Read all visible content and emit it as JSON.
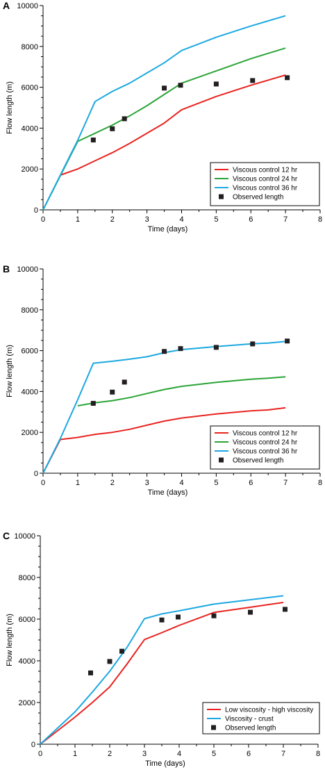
{
  "chart_data": [
    {
      "panel": "A",
      "type": "line",
      "xlabel": "Time (days)",
      "ylabel": "Flow length (m)",
      "xlim": [
        0,
        8
      ],
      "ylim": [
        0,
        10000
      ],
      "x_ticks": [
        "0",
        "1",
        "2",
        "3",
        "4",
        "5",
        "6",
        "7",
        "8"
      ],
      "y_ticks": [
        "0",
        "2000",
        "4000",
        "6000",
        "8000",
        "10000"
      ],
      "legend_position": "bottom-right",
      "series": [
        {
          "name": "Viscous control 12 hr",
          "type": "line",
          "color": "#e8231f",
          "x": [
            0.5,
            1.0,
            1.5,
            2.0,
            2.5,
            3.0,
            3.5,
            4.0,
            5.0,
            6.0,
            7.0
          ],
          "y": [
            1700,
            2000,
            2400,
            2800,
            3250,
            3750,
            4250,
            4900,
            5550,
            6100,
            6600
          ]
        },
        {
          "name": "Viscous control 24 hr",
          "type": "line",
          "color": "#2aa436",
          "x": [
            0,
            1.0,
            1.5,
            2.0,
            2.5,
            3.0,
            3.5,
            4.0,
            5.0,
            6.0,
            7.0
          ],
          "y": [
            0,
            3350,
            3750,
            4150,
            4600,
            5100,
            5650,
            6200,
            6800,
            7400,
            7920
          ]
        },
        {
          "name": "Viscous control 36 hr",
          "type": "line",
          "color": "#1ba8e0",
          "x": [
            0,
            0.5,
            1.0,
            1.5,
            2.0,
            2.5,
            3.0,
            3.5,
            4.0,
            5.0,
            6.0,
            7.0
          ],
          "y": [
            0,
            1700,
            3400,
            5300,
            5800,
            6200,
            6700,
            7200,
            7800,
            8450,
            9000,
            9500
          ]
        },
        {
          "name": "Observed length",
          "type": "scatter",
          "color": "#231f20",
          "x": [
            1.45,
            2.0,
            2.35,
            3.5,
            3.97,
            5.0,
            6.05,
            7.05
          ],
          "y": [
            3420,
            3970,
            4460,
            5960,
            6100,
            6160,
            6330,
            6470
          ]
        }
      ]
    },
    {
      "panel": "B",
      "type": "line",
      "xlabel": "Time (days)",
      "ylabel": "Flow length (m)",
      "xlim": [
        0,
        8
      ],
      "ylim": [
        0,
        10000
      ],
      "x_ticks": [
        "0",
        "1",
        "2",
        "3",
        "4",
        "5",
        "6",
        "7",
        "8"
      ],
      "y_ticks": [
        "0",
        "2000",
        "4000",
        "6000",
        "8000",
        "10000"
      ],
      "legend_position": "bottom-right",
      "series": [
        {
          "name": "Viscous control 12 hr",
          "type": "line",
          "color": "#e8231f",
          "x": [
            0,
            0.5,
            1.0,
            1.5,
            2.0,
            2.5,
            3.0,
            3.5,
            4.0,
            5.0,
            6.0,
            6.5,
            7.0
          ],
          "y": [
            0,
            1650,
            1750,
            1900,
            2000,
            2150,
            2350,
            2550,
            2700,
            2900,
            3050,
            3100,
            3200
          ]
        },
        {
          "name": "Viscous control 24 hr",
          "type": "line",
          "color": "#2aa436",
          "x": [
            1.0,
            1.5,
            2.0,
            2.5,
            3.0,
            3.5,
            4.0,
            5.0,
            6.0,
            6.5,
            7.0
          ],
          "y": [
            3300,
            3450,
            3550,
            3700,
            3900,
            4100,
            4250,
            4450,
            4600,
            4650,
            4720
          ]
        },
        {
          "name": "Viscous control 36 hr",
          "type": "line",
          "color": "#1ba8e0",
          "x": [
            0,
            0.5,
            1.0,
            1.45,
            2.0,
            2.5,
            3.0,
            3.5,
            4.0,
            5.0,
            6.0,
            6.5,
            7.0
          ],
          "y": [
            0,
            1700,
            3600,
            5380,
            5480,
            5580,
            5700,
            5900,
            6050,
            6200,
            6330,
            6370,
            6450
          ]
        },
        {
          "name": "Observed length",
          "type": "scatter",
          "color": "#231f20",
          "x": [
            1.45,
            2.0,
            2.35,
            3.5,
            3.97,
            5.0,
            6.05,
            7.05
          ],
          "y": [
            3420,
            3970,
            4460,
            5960,
            6100,
            6160,
            6330,
            6470
          ]
        }
      ]
    },
    {
      "panel": "C",
      "type": "line",
      "xlabel": "Time (days)",
      "ylabel": "Flow length (m)",
      "xlim": [
        0,
        8
      ],
      "ylim": [
        0,
        10000
      ],
      "x_ticks": [
        "0",
        "1",
        "2",
        "3",
        "4",
        "5",
        "6",
        "7",
        "8"
      ],
      "y_ticks": [
        "0",
        "2000",
        "4000",
        "6000",
        "8000",
        "10000"
      ],
      "legend_position": "bottom-right",
      "series": [
        {
          "name": "Low viscosity - high viscosity",
          "type": "line",
          "color": "#e8231f",
          "x": [
            0,
            1.0,
            1.5,
            2.0,
            2.5,
            3.0,
            3.5,
            4.0,
            5.0,
            6.0,
            7.0
          ],
          "y": [
            0,
            1300,
            2000,
            2750,
            3850,
            5020,
            5350,
            5700,
            6320,
            6560,
            6800
          ]
        },
        {
          "name": "Viscosity - crust",
          "type": "line",
          "color": "#1ba8e0",
          "x": [
            0,
            1.0,
            1.5,
            2.0,
            2.5,
            3.0,
            3.5,
            4.0,
            5.0,
            6.0,
            7.0
          ],
          "y": [
            0,
            1550,
            2500,
            3500,
            4650,
            6020,
            6250,
            6400,
            6720,
            6920,
            7120
          ]
        },
        {
          "name": "Observed length",
          "type": "scatter",
          "color": "#231f20",
          "x": [
            1.45,
            2.0,
            2.35,
            3.5,
            3.97,
            5.0,
            6.05,
            7.05
          ],
          "y": [
            3420,
            3970,
            4460,
            5960,
            6100,
            6160,
            6330,
            6470
          ]
        }
      ]
    }
  ]
}
